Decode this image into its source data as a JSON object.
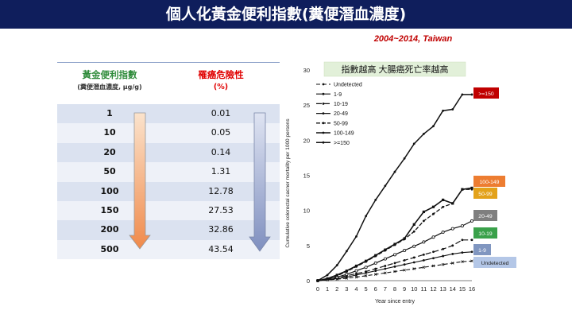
{
  "slide": {
    "title": "個人化黃金便利指數(糞便潛血濃度)",
    "subtitle": "2004~2014, Taiwan"
  },
  "table": {
    "header_index": "黃金便利指數",
    "header_index_unit": "(糞便潛血濃度, μg/g)",
    "header_risk": "罹癌危險性",
    "header_risk_unit": "(%)",
    "rows": [
      {
        "index": "1",
        "risk": "0.01"
      },
      {
        "index": "10",
        "risk": "0.05"
      },
      {
        "index": "20",
        "risk": "0.14"
      },
      {
        "index": "50",
        "risk": "1.31"
      },
      {
        "index": "100",
        "risk": "12.78"
      },
      {
        "index": "150",
        "risk": "27.53"
      },
      {
        "index": "200",
        "risk": "32.86"
      },
      {
        "index": "500",
        "risk": "43.54"
      }
    ],
    "arrow_colors": {
      "left_top": "#fbe3cc",
      "left_bottom": "#f08a4b",
      "right_top": "#dfe4f2",
      "right_bottom": "#7f8fbf"
    }
  },
  "chart_data": {
    "type": "line",
    "annotation": "指數越高 大腸癌死亡率越高",
    "xlabel": "Year since entry",
    "ylabel": "Cumulative colorectal cacner mortality per 1000 persons",
    "xlim": [
      0,
      16
    ],
    "ylim": [
      0,
      30
    ],
    "x_ticks": [
      "0",
      "1",
      "2",
      "3",
      "4",
      "5",
      "6",
      "7",
      "8",
      "9",
      "10",
      "11",
      "12",
      "13",
      "14",
      "15",
      "16"
    ],
    "y_ticks": [
      "0",
      "5",
      "10",
      "15",
      "20",
      "25",
      "30"
    ],
    "x": [
      0,
      1,
      2,
      3,
      4,
      5,
      6,
      7,
      8,
      9,
      10,
      11,
      12,
      13,
      14,
      15,
      16
    ],
    "legend_position": "top-left",
    "series": [
      {
        "name": "Undetected",
        "values": [
          0,
          0.1,
          0.2,
          0.35,
          0.5,
          0.7,
          0.9,
          1.1,
          1.3,
          1.5,
          1.7,
          1.9,
          2.1,
          2.3,
          2.5,
          2.7,
          2.8
        ],
        "end_label": "Undetected",
        "end_color": "#b4c7e7"
      },
      {
        "name": "1-9",
        "values": [
          0,
          0.1,
          0.3,
          0.5,
          0.8,
          1.1,
          1.4,
          1.7,
          2.0,
          2.3,
          2.6,
          2.9,
          3.2,
          3.5,
          3.8,
          4.0,
          4.1
        ],
        "end_label": "1-9",
        "end_color": "#8096c0"
      },
      {
        "name": "10-19",
        "values": [
          0,
          0.2,
          0.4,
          0.7,
          1.0,
          1.3,
          1.7,
          2.1,
          2.5,
          2.9,
          3.3,
          3.7,
          4.1,
          4.5,
          5.0,
          5.8,
          5.8
        ],
        "end_label": "10-19",
        "end_color": "#3aa14a"
      },
      {
        "name": "20-49",
        "values": [
          0,
          0.2,
          0.5,
          0.9,
          1.4,
          1.9,
          2.5,
          3.1,
          3.7,
          4.3,
          4.9,
          5.5,
          6.2,
          6.9,
          7.4,
          7.8,
          8.5
        ],
        "end_label": "20-49",
        "end_color": "#7f7f7f"
      },
      {
        "name": "50-99",
        "values": [
          0,
          0.3,
          0.7,
          1.3,
          2.0,
          2.7,
          3.5,
          4.3,
          5.1,
          5.9,
          7.0,
          8.5,
          9.5,
          10.5,
          11.0,
          13.0,
          13.0
        ],
        "end_label": "50-99",
        "end_color": "#e3a21a"
      },
      {
        "name": "100-149",
        "values": [
          0,
          0.3,
          0.8,
          1.4,
          2.1,
          2.8,
          3.6,
          4.4,
          5.2,
          6.0,
          8.0,
          9.8,
          10.5,
          11.5,
          11.0,
          13.0,
          13.2
        ],
        "end_label": "100-149",
        "end_color": "#ed7d31"
      },
      {
        "name": ">=150",
        "values": [
          0,
          0.8,
          2.2,
          4.2,
          6.3,
          9.2,
          11.5,
          13.5,
          15.5,
          17.4,
          19.5,
          20.9,
          22.0,
          24.2,
          24.4,
          26.5,
          26.5
        ],
        "end_label": ">=150",
        "end_color": "#c00000"
      }
    ]
  }
}
